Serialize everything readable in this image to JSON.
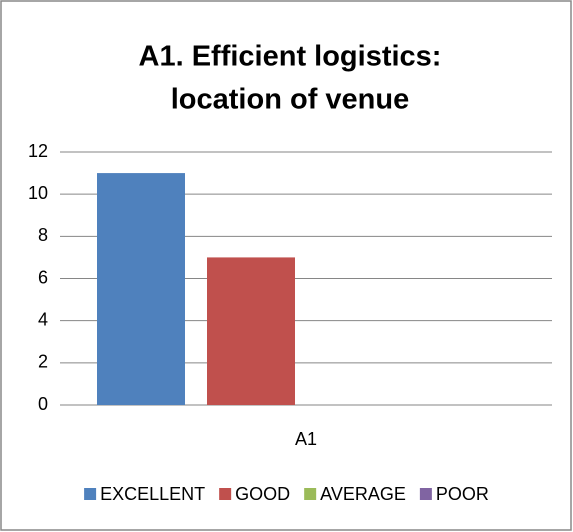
{
  "chart_data": {
    "type": "bar",
    "title": [
      "A1. Efficient logistics:",
      "location of venue"
    ],
    "categories": [
      "A1"
    ],
    "series": [
      {
        "name": "EXCELLENT",
        "color": "#4f81bd",
        "values": [
          11
        ]
      },
      {
        "name": "GOOD",
        "color": "#c0504d",
        "values": [
          7
        ]
      },
      {
        "name": "AVERAGE",
        "color": "#9bbb59",
        "values": [
          0
        ]
      },
      {
        "name": "POOR",
        "color": "#8064a2",
        "values": [
          0
        ]
      }
    ],
    "ylim": [
      0,
      12
    ],
    "yticks": [
      0,
      2,
      4,
      6,
      8,
      10,
      12
    ],
    "grid": true,
    "legend": "bottom"
  }
}
